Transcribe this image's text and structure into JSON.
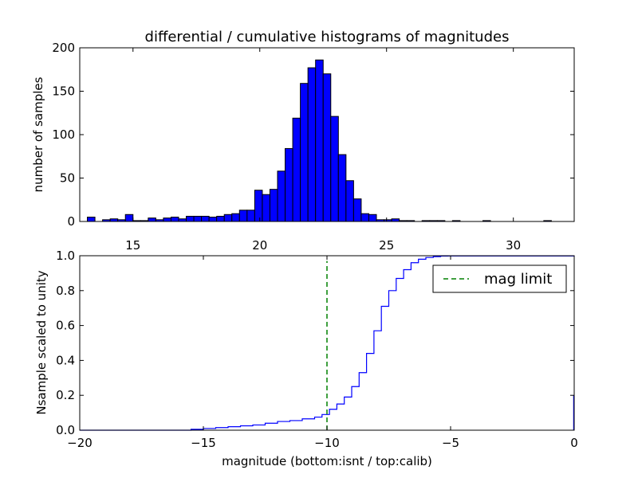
{
  "chart_data": [
    {
      "type": "bar",
      "title": "differential / cumulative histograms of magnitudes",
      "xlabel": "",
      "ylabel": "number of samples",
      "xlim": [
        12.9,
        32.4
      ],
      "ylim": [
        0,
        200
      ],
      "xticks": [
        15,
        20,
        25,
        30
      ],
      "yticks": [
        0,
        50,
        100,
        150,
        200
      ],
      "xtick_position": "bottom",
      "bar_color": "#0000ff",
      "bin_width": 0.3,
      "bins": [
        {
          "x": 13.2,
          "value": 5
        },
        {
          "x": 13.8,
          "value": 2
        },
        {
          "x": 14.1,
          "value": 3
        },
        {
          "x": 14.4,
          "value": 2
        },
        {
          "x": 14.7,
          "value": 8
        },
        {
          "x": 15.0,
          "value": 1
        },
        {
          "x": 15.3,
          "value": 1
        },
        {
          "x": 15.6,
          "value": 4
        },
        {
          "x": 15.9,
          "value": 2
        },
        {
          "x": 16.2,
          "value": 4
        },
        {
          "x": 16.5,
          "value": 5
        },
        {
          "x": 16.8,
          "value": 3
        },
        {
          "x": 17.1,
          "value": 6
        },
        {
          "x": 17.4,
          "value": 6
        },
        {
          "x": 17.7,
          "value": 6
        },
        {
          "x": 18.0,
          "value": 5
        },
        {
          "x": 18.3,
          "value": 6
        },
        {
          "x": 18.6,
          "value": 8
        },
        {
          "x": 18.9,
          "value": 9
        },
        {
          "x": 19.2,
          "value": 13
        },
        {
          "x": 19.5,
          "value": 13
        },
        {
          "x": 19.8,
          "value": 36
        },
        {
          "x": 20.1,
          "value": 31
        },
        {
          "x": 20.4,
          "value": 37
        },
        {
          "x": 20.7,
          "value": 58
        },
        {
          "x": 21.0,
          "value": 84
        },
        {
          "x": 21.3,
          "value": 119
        },
        {
          "x": 21.6,
          "value": 159
        },
        {
          "x": 21.9,
          "value": 177
        },
        {
          "x": 22.2,
          "value": 186
        },
        {
          "x": 22.5,
          "value": 170
        },
        {
          "x": 22.8,
          "value": 121
        },
        {
          "x": 23.1,
          "value": 77
        },
        {
          "x": 23.4,
          "value": 47
        },
        {
          "x": 23.7,
          "value": 26
        },
        {
          "x": 24.0,
          "value": 9
        },
        {
          "x": 24.3,
          "value": 8
        },
        {
          "x": 24.6,
          "value": 2
        },
        {
          "x": 24.9,
          "value": 2
        },
        {
          "x": 25.2,
          "value": 3
        },
        {
          "x": 25.5,
          "value": 1
        },
        {
          "x": 25.8,
          "value": 1
        },
        {
          "x": 26.4,
          "value": 1
        },
        {
          "x": 26.7,
          "value": 1
        },
        {
          "x": 27.0,
          "value": 1
        },
        {
          "x": 27.6,
          "value": 1
        },
        {
          "x": 28.8,
          "value": 1
        },
        {
          "x": 31.2,
          "value": 1
        }
      ]
    },
    {
      "type": "line",
      "title": "",
      "xlabel": "magnitude (bottom:isnt / top:calib)",
      "ylabel": "Nsample scaled to unity",
      "xlim": [
        -20,
        0
      ],
      "ylim": [
        0.0,
        1.0
      ],
      "xticks": [
        -20,
        -15,
        -10,
        -5,
        0
      ],
      "xtick_labels": [
        "−20",
        "−15",
        "−10",
        "−5",
        "0"
      ],
      "yticks": [
        0.0,
        0.2,
        0.4,
        0.6,
        0.8,
        1.0
      ],
      "ytick_labels": [
        "0.0",
        "0.2",
        "0.4",
        "0.6",
        "0.8",
        "1.0"
      ],
      "legend_position": "top-right",
      "series": [
        {
          "name": "",
          "style": "steps",
          "color": "#0000ff",
          "x": [
            -20,
            -15.5,
            -15.0,
            -14.5,
            -14.0,
            -13.5,
            -13.0,
            -12.5,
            -12.0,
            -11.5,
            -11.0,
            -10.5,
            -10.2,
            -9.9,
            -9.6,
            -9.3,
            -9.0,
            -8.7,
            -8.4,
            -8.1,
            -7.8,
            -7.5,
            -7.2,
            -6.9,
            -6.6,
            -6.3,
            -6.0,
            -5.7,
            -5.4,
            -5.1,
            0
          ],
          "y": [
            0.0,
            0.005,
            0.01,
            0.015,
            0.02,
            0.025,
            0.03,
            0.04,
            0.05,
            0.055,
            0.065,
            0.075,
            0.09,
            0.12,
            0.15,
            0.19,
            0.25,
            0.33,
            0.44,
            0.57,
            0.71,
            0.8,
            0.87,
            0.92,
            0.96,
            0.98,
            0.99,
            0.995,
            0.998,
            0.999,
            1.0
          ]
        },
        {
          "name": "mag limit",
          "style": "dashed",
          "color": "#008000",
          "x": [
            -10.0,
            -10.0
          ],
          "y": [
            0.0,
            0.97
          ]
        }
      ],
      "edge_spike": {
        "x": 0,
        "y": [
          0.0,
          0.2
        ],
        "color": "#0000ff"
      }
    }
  ]
}
